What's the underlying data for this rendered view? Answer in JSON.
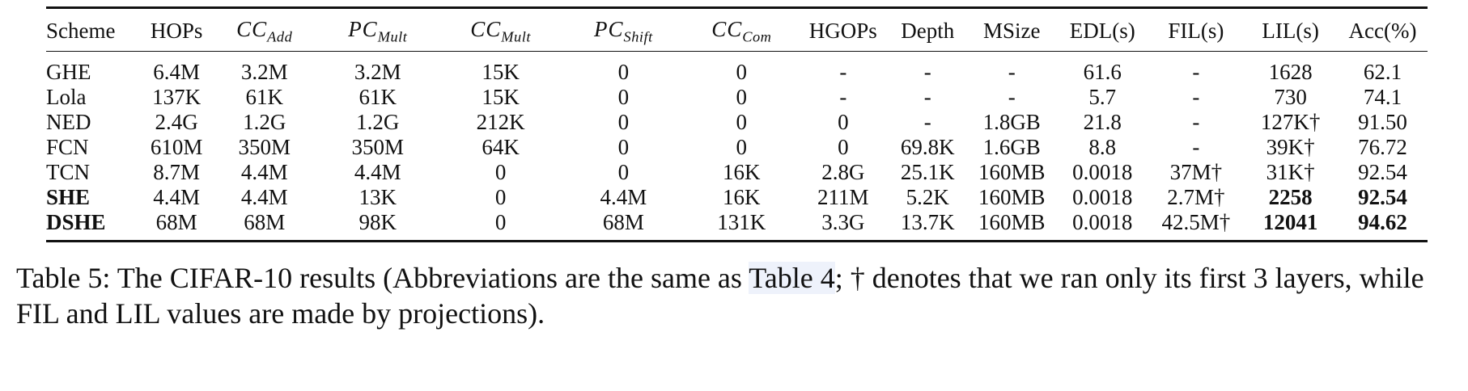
{
  "table": {
    "headers": [
      {
        "kind": "text",
        "text": "Scheme"
      },
      {
        "kind": "text",
        "text": "HOPs"
      },
      {
        "kind": "math",
        "base": "CC",
        "sub": "Add"
      },
      {
        "kind": "math",
        "base": "PC",
        "sub": "Mult"
      },
      {
        "kind": "math",
        "base": "CC",
        "sub": "Mult"
      },
      {
        "kind": "math",
        "base": "PC",
        "sub": "Shift"
      },
      {
        "kind": "math",
        "base": "CC",
        "sub": "Com"
      },
      {
        "kind": "text",
        "text": "HGOPs"
      },
      {
        "kind": "text",
        "text": "Depth"
      },
      {
        "kind": "text",
        "text": "MSize"
      },
      {
        "kind": "text",
        "text": "EDL(s)"
      },
      {
        "kind": "text",
        "text": "FIL(s)"
      },
      {
        "kind": "text",
        "text": "LIL(s)"
      },
      {
        "kind": "text",
        "text": "Acc(%)"
      }
    ],
    "rows": [
      {
        "cells": [
          "GHE",
          "6.4M",
          "3.2M",
          "3.2M",
          "15K",
          "0",
          "0",
          "-",
          "-",
          "-",
          "61.6",
          "-",
          "1628",
          "62.1"
        ],
        "bold": []
      },
      {
        "cells": [
          "Lola",
          "137K",
          "61K",
          "61K",
          "15K",
          "0",
          "0",
          "-",
          "-",
          "-",
          "5.7",
          "-",
          "730",
          "74.1"
        ],
        "bold": []
      },
      {
        "cells": [
          "NED",
          "2.4G",
          "1.2G",
          "1.2G",
          "212K",
          "0",
          "0",
          "0",
          "-",
          "1.8GB",
          "21.8",
          "-",
          "127K†",
          "91.50"
        ],
        "bold": []
      },
      {
        "cells": [
          "FCN",
          "610M",
          "350M",
          "350M",
          "64K",
          "0",
          "0",
          "0",
          "69.8K",
          "1.6GB",
          "8.8",
          "-",
          "39K†",
          "76.72"
        ],
        "bold": []
      },
      {
        "cells": [
          "TCN",
          "8.7M",
          "4.4M",
          "4.4M",
          "0",
          "0",
          "16K",
          "2.8G",
          "25.1K",
          "160MB",
          "0.0018",
          "37M†",
          "31K†",
          "92.54"
        ],
        "bold": []
      },
      {
        "cells": [
          "SHE",
          "4.4M",
          "4.4M",
          "13K",
          "0",
          "4.4M",
          "16K",
          "211M",
          "5.2K",
          "160MB",
          "0.0018",
          "2.7M†",
          "2258",
          "92.54"
        ],
        "bold": [
          0,
          12,
          13
        ]
      },
      {
        "cells": [
          "DSHE",
          "68M",
          "68M",
          "98K",
          "0",
          "68M",
          "131K",
          "3.3G",
          "13.7K",
          "160MB",
          "0.0018",
          "42.5M†",
          "12041",
          "94.62"
        ],
        "bold": [
          0,
          12,
          13
        ]
      }
    ]
  },
  "caption": {
    "prefix": "Table 5: The CIFAR-10 results (Abbreviations are the same as ",
    "ref": "Table 4",
    "suffix": "; † denotes that we ran only its first 3 layers, while FIL and LIL values are made by projections)."
  }
}
